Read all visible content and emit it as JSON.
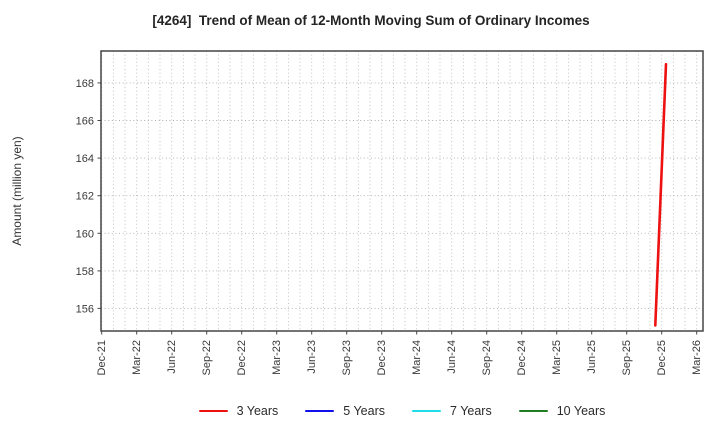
{
  "title": "[4264]  Trend of Mean of 12-Month Moving Sum of Ordinary Incomes",
  "chart_data": {
    "type": "line",
    "title": "[4264]  Trend of Mean of 12-Month Moving Sum of Ordinary Incomes",
    "xlabel": "",
    "ylabel": "Amount (million yen)",
    "x_tick_labels": [
      "Dec-21",
      "Mar-22",
      "Jun-22",
      "Sep-22",
      "Dec-22",
      "Mar-23",
      "Jun-23",
      "Sep-23",
      "Dec-23",
      "Mar-24",
      "Jun-24",
      "Sep-24",
      "Dec-24",
      "Mar-25",
      "Jun-25",
      "Sep-25",
      "Dec-25",
      "Mar-26"
    ],
    "months_per_xtick": 3,
    "minor_vgrid_months": 52,
    "x_domain_months": [
      -0.06,
      51.54
    ],
    "yticks": [
      156,
      158,
      160,
      162,
      164,
      166,
      168
    ],
    "ylim": [
      154.8,
      169.7
    ],
    "grid": "dotted",
    "legend_position": "bottom",
    "series": [
      {
        "name": "3 Years",
        "color": "#ed1111",
        "points": [
          {
            "date": "Nov-25",
            "month_index": 47.45,
            "value": 155.1
          },
          {
            "date": "Dec-25",
            "month_index": 48.37,
            "value": 169.0
          }
        ]
      },
      {
        "name": "5 Years",
        "color": "#1111ed",
        "points": []
      },
      {
        "name": "7 Years",
        "color": "#1fdce6",
        "points": []
      },
      {
        "name": "10 Years",
        "color": "#1f7e1f",
        "points": []
      }
    ]
  }
}
